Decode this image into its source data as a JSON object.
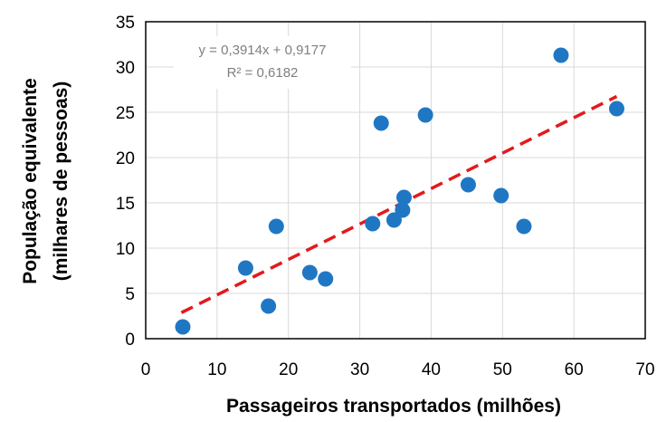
{
  "chart_data": {
    "type": "scatter",
    "xlabel": "Passageiros transportados (milhões)",
    "ylabel_line1": "População equivalente",
    "ylabel_line2": "(milhares de pessoas)",
    "xlim": [
      0,
      70
    ],
    "ylim": [
      0,
      35
    ],
    "xticks": [
      0,
      10,
      20,
      30,
      40,
      50,
      60,
      70
    ],
    "yticks": [
      0,
      5,
      10,
      15,
      20,
      25,
      30,
      35
    ],
    "grid": true,
    "trendline": {
      "type": "linear",
      "slope": 0.3914,
      "intercept": 0.9177,
      "x_range": [
        5,
        66
      ],
      "equation_label": "y = 0,3914x + 0,9177",
      "r2_label": "R² = 0,6182",
      "color": "#e31a1c"
    },
    "point_color": "#1f77c4",
    "points": [
      {
        "x": 5.2,
        "y": 1.3
      },
      {
        "x": 14.0,
        "y": 7.8
      },
      {
        "x": 17.2,
        "y": 3.6
      },
      {
        "x": 18.3,
        "y": 12.4
      },
      {
        "x": 23.0,
        "y": 7.3
      },
      {
        "x": 25.2,
        "y": 6.6
      },
      {
        "x": 31.8,
        "y": 12.7
      },
      {
        "x": 33.0,
        "y": 23.8
      },
      {
        "x": 34.8,
        "y": 13.1
      },
      {
        "x": 36.0,
        "y": 14.2
      },
      {
        "x": 36.2,
        "y": 15.6
      },
      {
        "x": 39.2,
        "y": 24.7
      },
      {
        "x": 45.2,
        "y": 17.0
      },
      {
        "x": 49.8,
        "y": 15.8
      },
      {
        "x": 53.0,
        "y": 12.4
      },
      {
        "x": 58.2,
        "y": 31.3
      },
      {
        "x": 66.0,
        "y": 25.4
      }
    ]
  }
}
